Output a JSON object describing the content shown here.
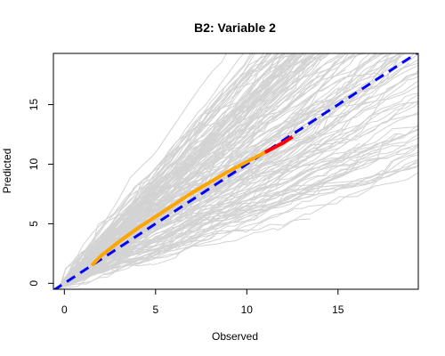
{
  "chart_data": {
    "type": "line",
    "title": "B2: Variable 2",
    "xlabel": "Observed",
    "ylabel": "Predicted",
    "xlim": [
      -0.6,
      19.4
    ],
    "ylim": [
      -0.5,
      19.3
    ],
    "xticks": [
      0,
      5,
      10,
      15
    ],
    "yticks": [
      0,
      5,
      10,
      15
    ],
    "grid": false,
    "legend": "none",
    "colors": {
      "background_lines": "#d3d3d3",
      "fit_line": "#ffa500",
      "fit_line_tail": "#ff0000",
      "identity_line": "#0000ff"
    },
    "series": [
      {
        "style": "dashed",
        "color": "#0000ff",
        "x": [
          -0.6,
          19.4
        ],
        "y": [
          -0.6,
          19.4
        ]
      },
      {
        "style": "solid",
        "color": "#ffa500",
        "x": [
          1.5,
          2.0,
          3.0,
          4.0,
          5.0,
          6.0,
          7.0,
          8.0,
          9.0,
          10.0,
          11.0
        ],
        "y": [
          1.5,
          2.3,
          3.5,
          4.6,
          5.6,
          6.6,
          7.6,
          8.5,
          9.4,
          10.2,
          11.0
        ]
      },
      {
        "style": "solid",
        "color": "#ff0000",
        "x": [
          11.0,
          12.0,
          12.5
        ],
        "y": [
          11.0,
          11.8,
          12.3
        ]
      }
    ]
  }
}
